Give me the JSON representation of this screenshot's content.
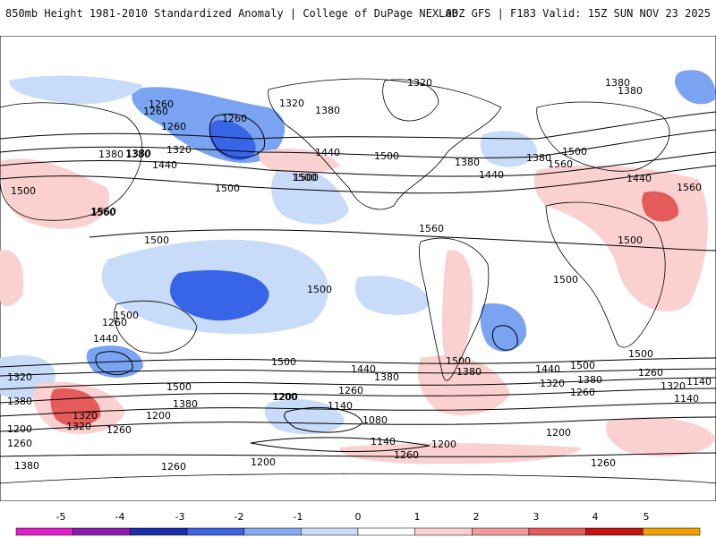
{
  "header": {
    "title": "850mb Height 1981-2010 Standardized Anomaly | College of DuPage NEXLAB",
    "run": "00Z GFS | F183 Valid: 15Z SUN NOV 23 2025"
  },
  "colors": {
    "ocean_bg": "#ffffff",
    "contour": "#000000",
    "coast": "#000000",
    "neg1": "#c8dcfa",
    "neg2": "#7aa4f2",
    "neg3": "#3864e8",
    "neg4": "#1e2fb8",
    "neg5": "#7a1aa6",
    "pos1": "#fbd0d0",
    "pos2": "#f29a9a",
    "pos3": "#e55a5a",
    "pos4": "#c21414",
    "pos5": "#f2a000"
  },
  "contour_labels": [
    "1320",
    "1380",
    "1260",
    "1260",
    "1260",
    "1320",
    "1380",
    "1380",
    "1500",
    "1380",
    "1440",
    "1500",
    "1560",
    "1560",
    "1500",
    "1500",
    "1500",
    "1500",
    "1500",
    "1500",
    "1560",
    "1560",
    "1500",
    "1380",
    "1440",
    "1500",
    "1500",
    "1440",
    "1380",
    "1500",
    "1440",
    "1380",
    "1320",
    "1260",
    "1200",
    "1140",
    "1080",
    "1200",
    "1260",
    "1200",
    "1140",
    "1200",
    "1260",
    "1320",
    "1320",
    "1260",
    "1200",
    "1260",
    "1380",
    "1380",
    "1320",
    "1260",
    "1200",
    "1140",
    "1260",
    "1200",
    "1260",
    "1380",
    "1440",
    "1500",
    "1380",
    "1320",
    "1260",
    "1140",
    "1500",
    "1380",
    "1260",
    "1320",
    "1380",
    "1440",
    "1500",
    "1500",
    "1560",
    "1440",
    "1380"
  ],
  "legend": {
    "ticks": [
      "-5",
      "-4",
      "-3",
      "-2",
      "-1",
      "0",
      "1",
      "2",
      "3",
      "4",
      "5"
    ],
    "colors": [
      "#e020c8",
      "#8a1cb0",
      "#1a2fa8",
      "#3d63e0",
      "#86aaf0",
      "#c9dbf8",
      "#ffffff",
      "#fbd0d0",
      "#f29a9a",
      "#e55a5a",
      "#c21414",
      "#f2a000"
    ]
  }
}
